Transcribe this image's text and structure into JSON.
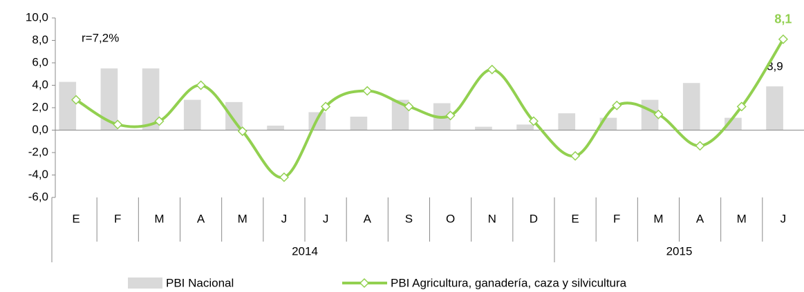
{
  "chart_data": {
    "type": "bar-line",
    "annotation": "r=7,2%",
    "categories": [
      "E",
      "F",
      "M",
      "A",
      "M",
      "J",
      "J",
      "A",
      "S",
      "O",
      "N",
      "D",
      "E",
      "F",
      "M",
      "A",
      "M",
      "J"
    ],
    "groups": [
      {
        "label": "2014",
        "span": 12
      },
      {
        "label": "2015",
        "span": 6
      }
    ],
    "series": [
      {
        "name": "PBI Nacional",
        "type": "bar",
        "color": "#d9d9d9",
        "values": [
          4.3,
          5.5,
          5.5,
          2.7,
          2.5,
          0.4,
          1.6,
          1.2,
          2.7,
          2.4,
          0.3,
          0.5,
          1.5,
          1.1,
          2.7,
          4.2,
          1.1,
          3.9
        ],
        "value_labels": [
          null,
          null,
          null,
          null,
          null,
          null,
          null,
          null,
          null,
          null,
          null,
          null,
          null,
          null,
          null,
          null,
          null,
          "3,9"
        ]
      },
      {
        "name": "PBI Agricultura, ganadería, caza y silvicultura",
        "type": "line",
        "color": "#92d050",
        "values": [
          2.7,
          0.5,
          0.8,
          4.0,
          -0.1,
          -4.2,
          2.1,
          3.5,
          2.1,
          1.3,
          5.4,
          0.8,
          -2.3,
          2.2,
          1.4,
          -1.4,
          2.1,
          8.1
        ],
        "value_labels": [
          null,
          null,
          null,
          null,
          null,
          null,
          null,
          null,
          null,
          null,
          null,
          null,
          null,
          null,
          null,
          null,
          null,
          "8,1"
        ]
      }
    ],
    "ylim": [
      -6,
      10
    ],
    "yticks": [
      {
        "value": -6,
        "label": "-6,0"
      },
      {
        "value": -4,
        "label": "-4,0"
      },
      {
        "value": -2,
        "label": "-2,0"
      },
      {
        "value": 0,
        "label": "0,0"
      },
      {
        "value": 2,
        "label": "2,0"
      },
      {
        "value": 4,
        "label": "4,0"
      },
      {
        "value": 6,
        "label": "6,0"
      },
      {
        "value": 8,
        "label": "8,0"
      },
      {
        "value": 10,
        "label": "10,0"
      }
    ],
    "legend": "bottom"
  }
}
